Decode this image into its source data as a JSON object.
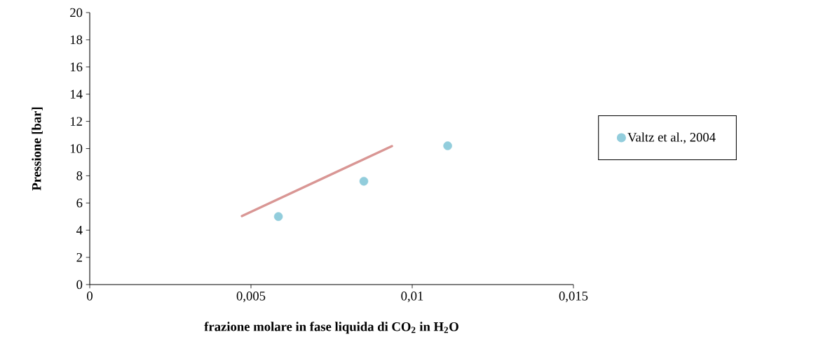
{
  "chart_data": {
    "type": "scatter",
    "xlabel": "frazione molare in fase liquida di CO$_{2}$ in H$_{2}$O",
    "ylabel": "Pressione [bar]",
    "xlim": [
      0,
      0.015
    ],
    "xticks": [
      {
        "value": 0,
        "label": "0"
      },
      {
        "value": 0.005,
        "label": "0,005"
      },
      {
        "value": 0.01,
        "label": "0,01"
      },
      {
        "value": 0.015,
        "label": "0,015"
      }
    ],
    "ylim": [
      0,
      20
    ],
    "yticks": [
      0,
      2,
      4,
      6,
      8,
      10,
      12,
      14,
      16,
      18,
      20
    ],
    "legend": "right",
    "marker": "circle",
    "series": [
      {
        "name": "Valtz et al., 2004",
        "color": "#92cddc",
        "x": [
          0.00585,
          0.0085,
          0.0111
        ],
        "values": [
          5.0,
          7.6,
          10.2
        ]
      },
      {
        "type": "line",
        "marker": "none",
        "color": "#d99694",
        "line_style": "solid",
        "x": [
          0.00472,
          0.00937
        ],
        "values": [
          5.04,
          10.18
        ]
      }
    ]
  }
}
